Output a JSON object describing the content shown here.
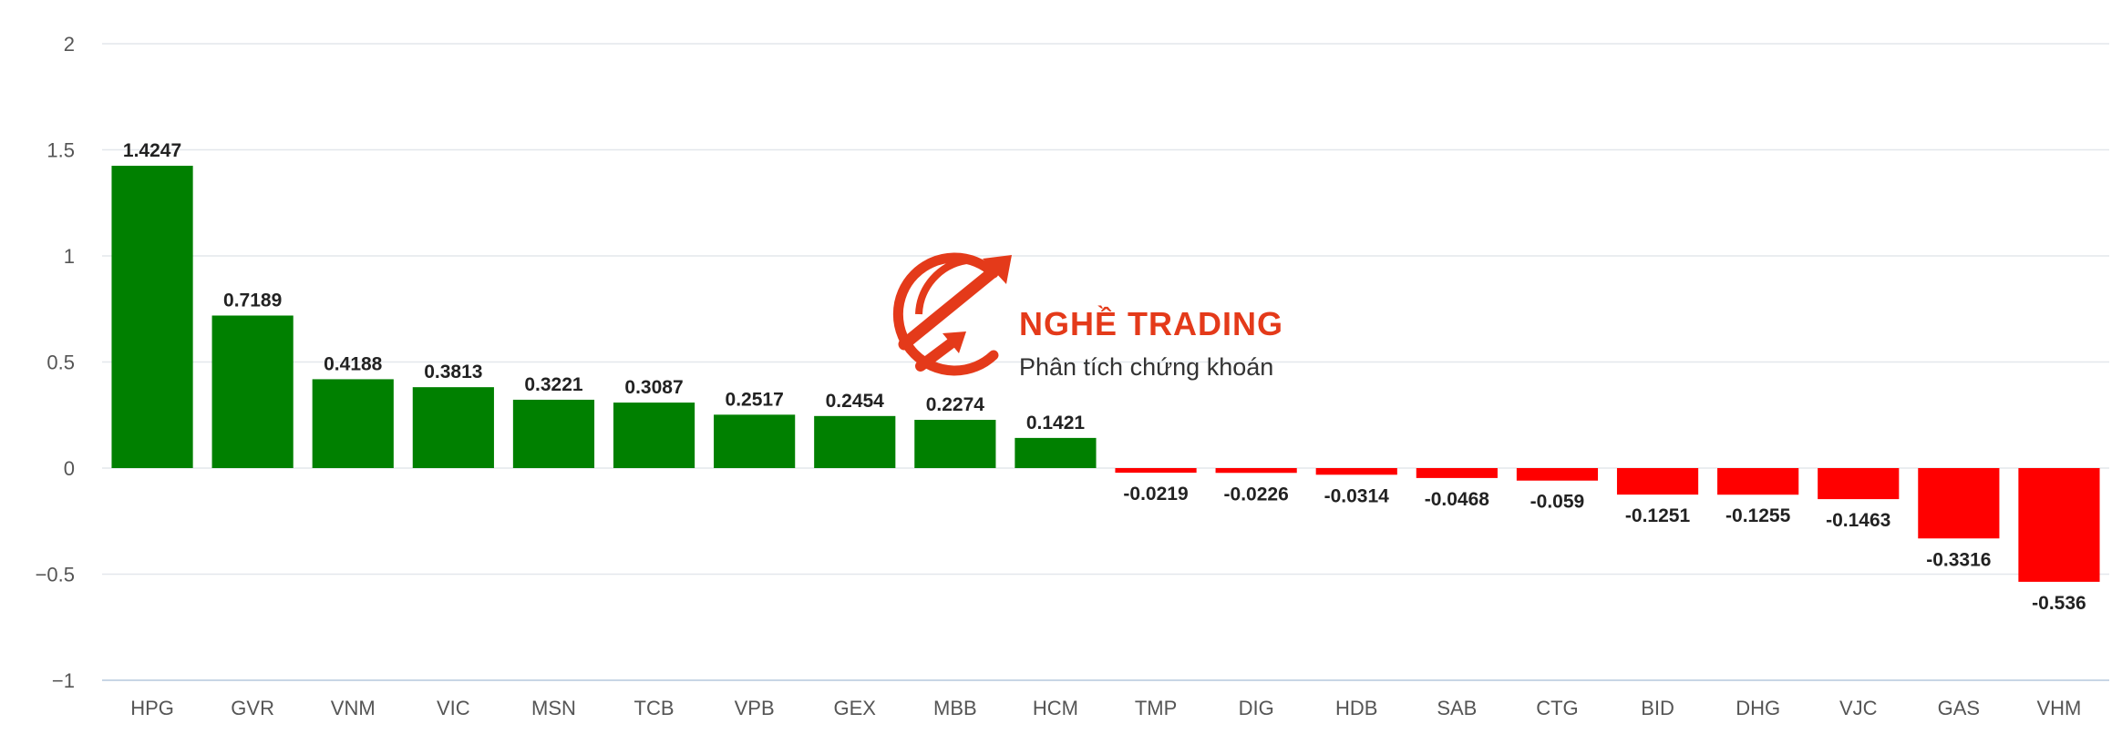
{
  "colors": {
    "positive": "#008000",
    "negative": "#ff0000",
    "logo": "#e43a1a",
    "subtitle": "#333333"
  },
  "logo": {
    "title": "NGHỀ TRADING",
    "subtitle": "Phân tích chứng khoán",
    "icon": "trading-arrows-icon"
  },
  "chart_data": {
    "type": "bar",
    "title": "",
    "xlabel": "",
    "ylabel": "",
    "ylim": [
      -1,
      2
    ],
    "yticks": [
      2,
      1.5,
      1,
      0.5,
      0,
      -0.5,
      -1
    ],
    "ytick_labels": [
      "2",
      "1.5",
      "1",
      "0.5",
      "0",
      "−0.5",
      "−1"
    ],
    "grid": true,
    "categories": [
      "HPG",
      "GVR",
      "VNM",
      "VIC",
      "MSN",
      "TCB",
      "VPB",
      "GEX",
      "MBB",
      "HCM",
      "TMP",
      "DIG",
      "HDB",
      "SAB",
      "CTG",
      "BID",
      "DHG",
      "VJC",
      "GAS",
      "VHM"
    ],
    "values": [
      1.4247,
      0.7189,
      0.4188,
      0.3813,
      0.3221,
      0.3087,
      0.2517,
      0.2454,
      0.2274,
      0.1421,
      -0.0219,
      -0.0226,
      -0.0314,
      -0.0468,
      -0.059,
      -0.1251,
      -0.1255,
      -0.1463,
      -0.3316,
      -0.536
    ],
    "value_labels": [
      "1.4247",
      "0.7189",
      "0.4188",
      "0.3813",
      "0.3221",
      "0.3087",
      "0.2517",
      "0.2454",
      "0.2274",
      "0.1421",
      "-0.0219",
      "-0.0226",
      "-0.0314",
      "-0.0468",
      "-0.059",
      "-0.1251",
      "-0.1255",
      "-0.1463",
      "-0.3316",
      "-0.536"
    ]
  }
}
